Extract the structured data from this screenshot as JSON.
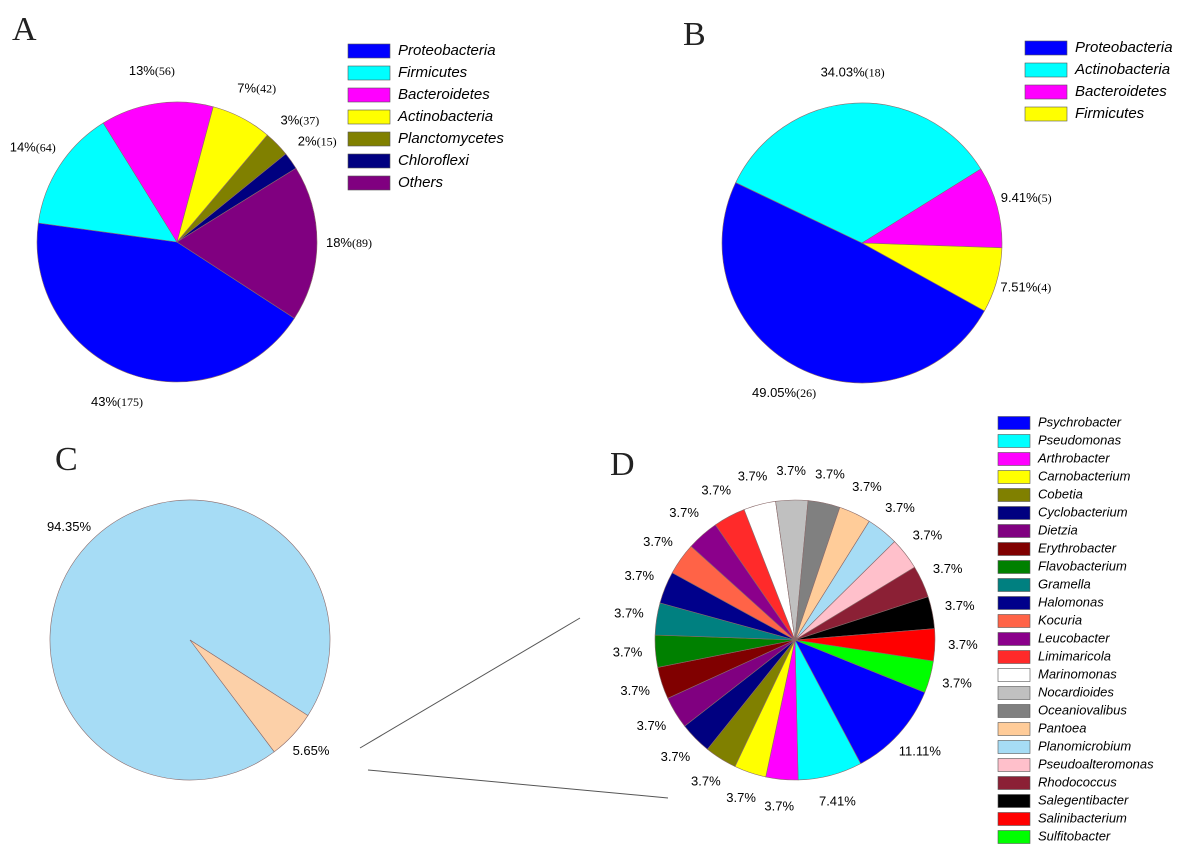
{
  "chart_data": [
    {
      "type": "pie",
      "panel": "A",
      "categories": [
        "Proteobacteria",
        "Firmicutes",
        "Bacteroidetes",
        "Actinobacteria",
        "Planctomycetes",
        "Chloroflexi",
        "Others"
      ],
      "values": [
        43,
        14,
        13,
        7,
        3,
        2,
        18
      ],
      "value_labels": [
        "43%",
        "14%",
        "13%",
        "7%",
        "3%",
        "2%",
        "18%"
      ],
      "count_labels": [
        "(175)",
        "(64)",
        "(56)",
        "(42)",
        "(37)",
        "(15)",
        "(89)"
      ],
      "colors": [
        "#0000ff",
        "#00ffff",
        "#ff00ff",
        "#ffff00",
        "#808000",
        "#000080",
        "#800080"
      ],
      "legend": true
    },
    {
      "type": "pie",
      "panel": "B",
      "categories": [
        "Proteobacteria",
        "Actinobacteria",
        "Bacteroidetes",
        "Firmicutes"
      ],
      "values": [
        49.05,
        34.03,
        9.41,
        7.51
      ],
      "value_labels": [
        "49.05%",
        "34.03%",
        "9.41%",
        "7.51%"
      ],
      "count_labels": [
        "(26)",
        "(18)",
        "(5)",
        "(4)"
      ],
      "colors": [
        "#0000ff",
        "#00ffff",
        "#ff00ff",
        "#ffff00"
      ],
      "legend": true
    },
    {
      "type": "pie",
      "panel": "C",
      "values": [
        94.35,
        5.65
      ],
      "value_labels": [
        "94.35%",
        "5.65%"
      ],
      "colors": [
        "#a6dcf5",
        "#fcd0a8"
      ],
      "legend": false
    },
    {
      "type": "pie",
      "panel": "D",
      "categories": [
        "Psychrobacter",
        "Pseudomonas",
        "Arthrobacter",
        "Carnobacterium",
        "Cobetia",
        "Cyclobacterium",
        "Dietzia",
        "Erythrobacter",
        "Flavobacterium",
        "Gramella",
        "Halomonas",
        "Kocuria",
        "Leucobacter",
        "Limimaricola",
        "Marinomonas",
        "Nocardioides",
        "Oceaniovalibus",
        "Pantoea",
        "Planomicrobium",
        "Pseudoalteromonas",
        "Rhodococcus",
        "Salegentibacter",
        "Salinibacterium",
        "Sulfitobacter"
      ],
      "values": [
        11.11,
        7.41,
        3.7,
        3.7,
        3.7,
        3.7,
        3.7,
        3.7,
        3.7,
        3.7,
        3.7,
        3.7,
        3.7,
        3.7,
        3.7,
        3.7,
        3.7,
        3.7,
        3.7,
        3.7,
        3.7,
        3.7,
        3.7,
        3.7
      ],
      "value_labels": [
        "11.11%",
        "7.41%",
        "3.7%",
        "3.7%",
        "3.7%",
        "3.7%",
        "3.7%",
        "3.7%",
        "3.7%",
        "3.7%",
        "3.7%",
        "3.7%",
        "3.7%",
        "3.7%",
        "3.7%",
        "3.7%",
        "3.7%",
        "3.7%",
        "3.7%",
        "3.7%",
        "3.7%",
        "3.7%",
        "3.7%",
        "3.7%"
      ],
      "colors": [
        "#0000ff",
        "#00ffff",
        "#ff00ff",
        "#ffff00",
        "#808000",
        "#000080",
        "#800080",
        "#800000",
        "#008000",
        "#008080",
        "#00008b",
        "#ff6347",
        "#8b008b",
        "#ff2a2a",
        "#ffffff",
        "#c0c0c0",
        "#808080",
        "#ffcc99",
        "#a6dcf5",
        "#ffc0cb",
        "#8b2035",
        "#000000",
        "#ff0000",
        "#00ff00"
      ],
      "legend": true
    }
  ]
}
